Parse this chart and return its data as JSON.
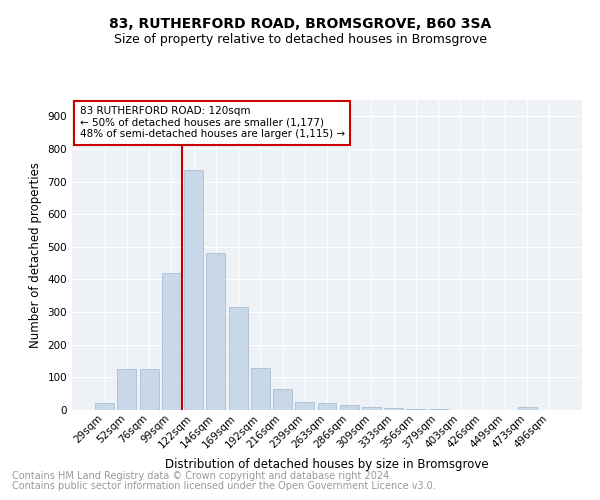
{
  "title1": "83, RUTHERFORD ROAD, BROMSGROVE, B60 3SA",
  "title2": "Size of property relative to detached houses in Bromsgrove",
  "xlabel": "Distribution of detached houses by size in Bromsgrove",
  "ylabel": "Number of detached properties",
  "categories": [
    "29sqm",
    "52sqm",
    "76sqm",
    "99sqm",
    "122sqm",
    "146sqm",
    "169sqm",
    "192sqm",
    "216sqm",
    "239sqm",
    "263sqm",
    "286sqm",
    "309sqm",
    "333sqm",
    "356sqm",
    "379sqm",
    "403sqm",
    "426sqm",
    "449sqm",
    "473sqm",
    "496sqm"
  ],
  "values": [
    22,
    125,
    125,
    420,
    735,
    480,
    315,
    130,
    65,
    25,
    22,
    15,
    10,
    5,
    3,
    2,
    1,
    1,
    1,
    8,
    1
  ],
  "bar_color": "#c8d8e8",
  "bar_edge_color": "#a0b8cc",
  "vline_color": "#cc0000",
  "annotation_lines": [
    "83 RUTHERFORD ROAD: 120sqm",
    "← 50% of detached houses are smaller (1,177)",
    "48% of semi-detached houses are larger (1,115) →"
  ],
  "box_color": "#cc0000",
  "footer1": "Contains HM Land Registry data © Crown copyright and database right 2024.",
  "footer2": "Contains public sector information licensed under the Open Government Licence v3.0.",
  "bg_color": "#eef2f7",
  "grid_color": "#ffffff",
  "title_fontsize": 10,
  "subtitle_fontsize": 9,
  "axis_label_fontsize": 8.5,
  "tick_fontsize": 7.5,
  "footer_fontsize": 7,
  "ylim": [
    0,
    950
  ],
  "yticks": [
    0,
    100,
    200,
    300,
    400,
    500,
    600,
    700,
    800,
    900
  ]
}
